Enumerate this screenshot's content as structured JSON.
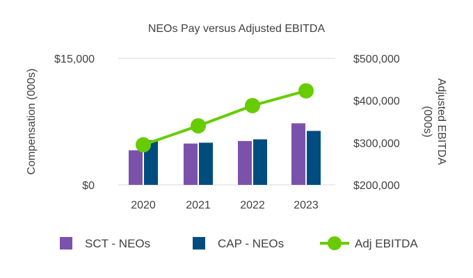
{
  "chart_data": {
    "type": "bar",
    "title": "NEOs Pay versus Adjusted EBITDA",
    "categories": [
      "2020",
      "2021",
      "2022",
      "2023"
    ],
    "ylabel": "Compensation (000s)",
    "ylabel_right": [
      "Adjusted EBITDA",
      "(000s)"
    ],
    "ylim": [
      0,
      15000
    ],
    "ylim_right": [
      200000,
      500000
    ],
    "yticks": [
      {
        "value": 0,
        "label": "$0"
      },
      {
        "value": 15000,
        "label": "$15,000"
      }
    ],
    "yticks_right": [
      {
        "value": 200000,
        "label": "$200,000"
      },
      {
        "value": 300000,
        "label": "$300,000"
      },
      {
        "value": 400000,
        "label": "$400,000"
      },
      {
        "value": 500000,
        "label": "$500,000"
      }
    ],
    "series": [
      {
        "name": "SCT - NEOs",
        "kind": "bar",
        "axis": "left",
        "color": "#7B52AB",
        "values": [
          4100,
          4900,
          5200,
          7300
        ]
      },
      {
        "name": "CAP - NEOs",
        "kind": "bar",
        "axis": "left",
        "color": "#004C7F",
        "values": [
          5300,
          5000,
          5400,
          6400
        ]
      },
      {
        "name": "Adj EBITDA",
        "kind": "line",
        "axis": "right",
        "color": "#66CC00",
        "values": [
          295000,
          340000,
          388000,
          423000
        ]
      }
    ],
    "legend_position": "bottom",
    "grid": false
  }
}
